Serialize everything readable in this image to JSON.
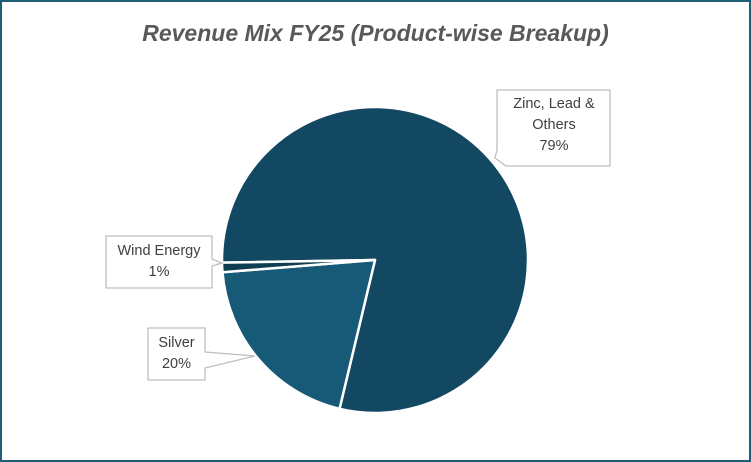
{
  "chart_data": {
    "type": "pie",
    "title": "Revenue Mix FY25 (Product-wise Breakup)",
    "categories": [
      "Zinc, Lead & Others",
      "Silver",
      "Wind Energy"
    ],
    "values": [
      79,
      20,
      1
    ],
    "value_labels": [
      "79%",
      "20%",
      "1%"
    ],
    "colors": [
      "#124861",
      "#165a78",
      "#0f3d52"
    ]
  }
}
